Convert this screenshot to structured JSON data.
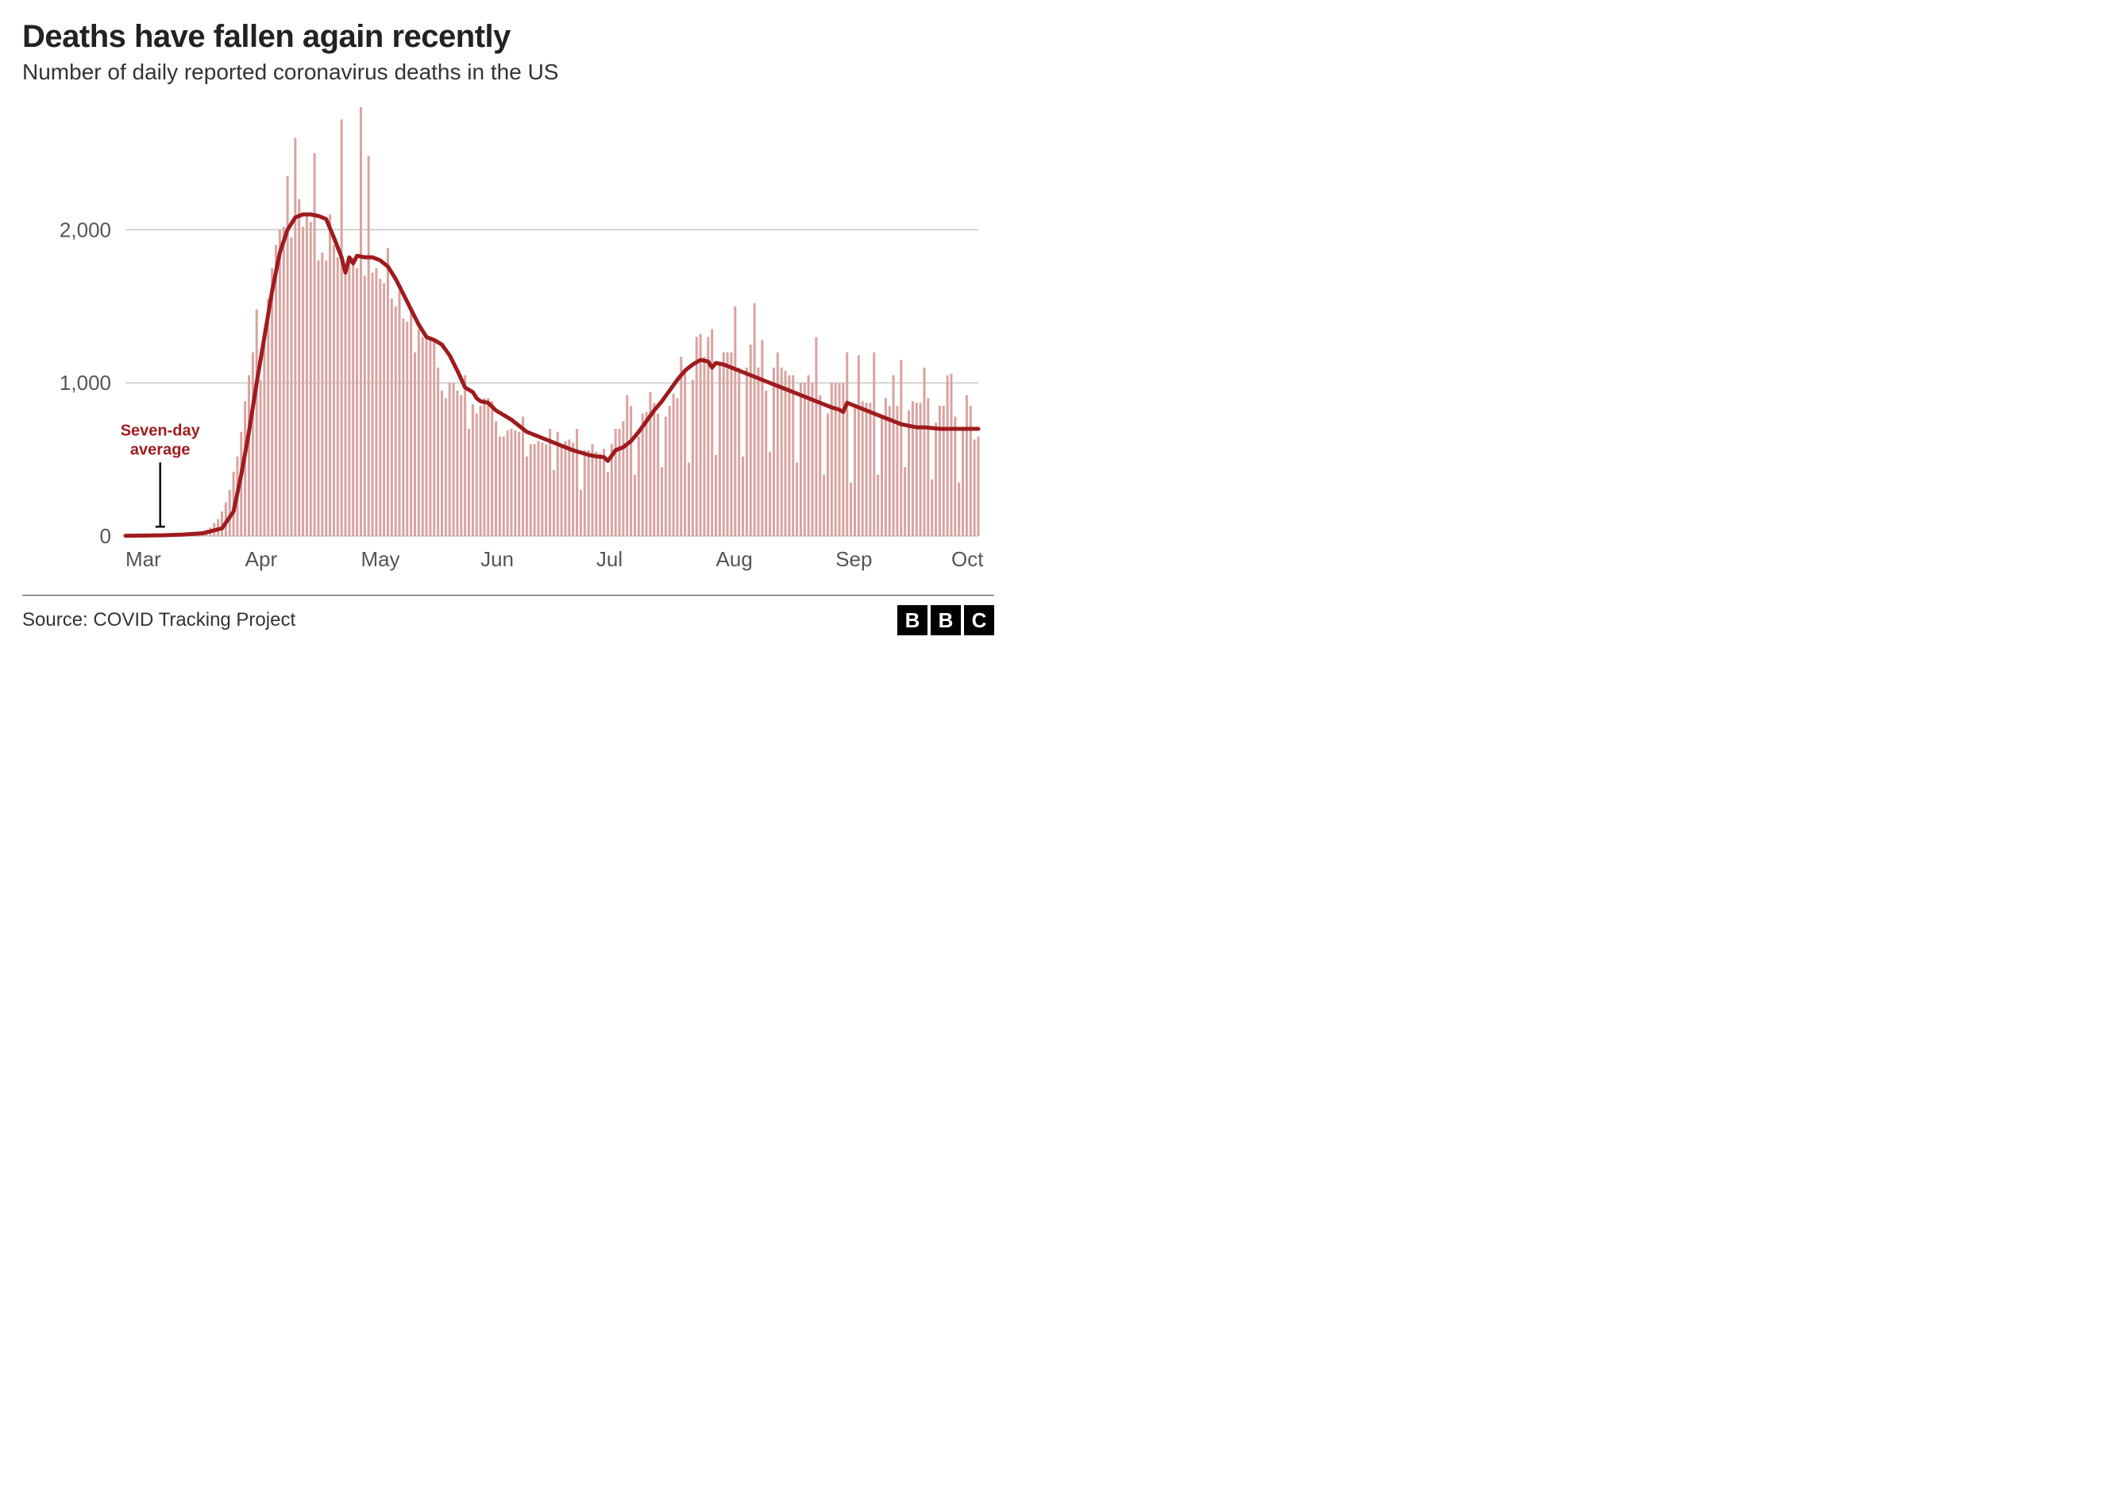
{
  "title": "Deaths have fallen again recently",
  "subtitle": "Number of daily reported coronavirus deaths in the US",
  "source_label": "Source: COVID Tracking Project",
  "logo_letters": [
    "B",
    "B",
    "C"
  ],
  "chart": {
    "type": "bar+line",
    "ylim": [
      0,
      2800
    ],
    "yticks": [
      0,
      1000,
      2000
    ],
    "ytick_labels": [
      "0",
      "1,000",
      "2,000"
    ],
    "xtick_indices": [
      0,
      31,
      61,
      92,
      122,
      153,
      184,
      214
    ],
    "xtick_labels": [
      "Mar",
      "Apr",
      "May",
      "Jun",
      "Jul",
      "Aug",
      "Sep",
      "Oct"
    ],
    "bar_color": "#d9a3a0",
    "line_color": "#9e1b1e",
    "line_width": 5,
    "grid_color": "#bdbdbd",
    "axis_text_color": "#555555",
    "axis_text_fontsize": 26,
    "background_color": "#ffffff",
    "annotation": {
      "text_lines": [
        "Seven-day",
        "average"
      ],
      "text_color": "#9e1b1e",
      "fontsize": 20,
      "fontweight": "700",
      "x_index": 9,
      "y_value": 480,
      "pointer_to_y": 30
    },
    "bars": [
      0,
      0,
      0,
      1,
      2,
      3,
      4,
      2,
      3,
      4,
      5,
      6,
      8,
      7,
      10,
      12,
      15,
      12,
      18,
      22,
      30,
      40,
      55,
      85,
      110,
      160,
      220,
      300,
      420,
      520,
      680,
      880,
      1050,
      1200,
      1480,
      1020,
      1300,
      1550,
      1750,
      1900,
      2000,
      2020,
      2350,
      1950,
      2600,
      2200,
      2020,
      2100,
      2050,
      2500,
      1800,
      1850,
      1800,
      2100,
      1900,
      1820,
      2720,
      1750,
      1800,
      1820,
      1750,
      2800,
      1700,
      2480,
      1720,
      1750,
      1680,
      1650,
      1880,
      1550,
      1500,
      1600,
      1420,
      1400,
      1500,
      1200,
      1350,
      1300,
      1310,
      1300,
      1280,
      1100,
      950,
      900,
      1000,
      1000,
      950,
      920,
      1050,
      700,
      860,
      800,
      850,
      900,
      900,
      880,
      750,
      650,
      650,
      690,
      700,
      690,
      680,
      780,
      520,
      600,
      600,
      620,
      610,
      600,
      700,
      430,
      680,
      600,
      620,
      630,
      610,
      700,
      300,
      560,
      560,
      600,
      550,
      540,
      570,
      420,
      600,
      700,
      700,
      750,
      920,
      850,
      400,
      650,
      800,
      810,
      940,
      870,
      800,
      450,
      780,
      850,
      930,
      900,
      1170,
      1080,
      480,
      1020,
      1300,
      1320,
      1170,
      1300,
      1350,
      530,
      1130,
      1200,
      1200,
      1200,
      1500,
      1100,
      520,
      1100,
      1250,
      1520,
      1100,
      1280,
      950,
      550,
      1100,
      1200,
      1100,
      1080,
      1050,
      1050,
      480,
      1000,
      1000,
      1050,
      1000,
      1300,
      920,
      400,
      800,
      1000,
      1000,
      1000,
      1000,
      1200,
      350,
      850,
      1180,
      880,
      870,
      870,
      1200,
      400,
      780,
      900,
      850,
      1050,
      850,
      1150,
      450,
      820,
      880,
      870,
      870,
      1100,
      900,
      370,
      740,
      850,
      850,
      1050,
      1060,
      780,
      350,
      700,
      920,
      850,
      630,
      650
    ],
    "avg_line": [
      [
        0,
        2
      ],
      [
        5,
        3
      ],
      [
        10,
        5
      ],
      [
        15,
        10
      ],
      [
        20,
        18
      ],
      [
        25,
        50
      ],
      [
        28,
        160
      ],
      [
        30,
        400
      ],
      [
        32,
        680
      ],
      [
        34,
        1000
      ],
      [
        36,
        1300
      ],
      [
        38,
        1600
      ],
      [
        40,
        1850
      ],
      [
        42,
        2000
      ],
      [
        44,
        2080
      ],
      [
        46,
        2100
      ],
      [
        48,
        2100
      ],
      [
        50,
        2090
      ],
      [
        52,
        2070
      ],
      [
        54,
        1950
      ],
      [
        56,
        1820
      ],
      [
        57,
        1720
      ],
      [
        58,
        1820
      ],
      [
        59,
        1780
      ],
      [
        60,
        1830
      ],
      [
        62,
        1820
      ],
      [
        64,
        1820
      ],
      [
        66,
        1800
      ],
      [
        68,
        1760
      ],
      [
        70,
        1680
      ],
      [
        72,
        1580
      ],
      [
        74,
        1480
      ],
      [
        76,
        1380
      ],
      [
        78,
        1300
      ],
      [
        80,
        1280
      ],
      [
        82,
        1250
      ],
      [
        84,
        1180
      ],
      [
        86,
        1080
      ],
      [
        88,
        970
      ],
      [
        90,
        940
      ],
      [
        91,
        900
      ],
      [
        92,
        880
      ],
      [
        94,
        870
      ],
      [
        96,
        820
      ],
      [
        98,
        790
      ],
      [
        100,
        760
      ],
      [
        102,
        720
      ],
      [
        104,
        680
      ],
      [
        106,
        660
      ],
      [
        108,
        640
      ],
      [
        110,
        620
      ],
      [
        112,
        600
      ],
      [
        114,
        580
      ],
      [
        116,
        560
      ],
      [
        118,
        545
      ],
      [
        120,
        530
      ],
      [
        122,
        520
      ],
      [
        124,
        515
      ],
      [
        125,
        490
      ],
      [
        127,
        560
      ],
      [
        129,
        580
      ],
      [
        131,
        620
      ],
      [
        133,
        680
      ],
      [
        135,
        750
      ],
      [
        137,
        820
      ],
      [
        139,
        880
      ],
      [
        141,
        950
      ],
      [
        143,
        1020
      ],
      [
        145,
        1080
      ],
      [
        147,
        1120
      ],
      [
        149,
        1150
      ],
      [
        151,
        1140
      ],
      [
        152,
        1100
      ],
      [
        153,
        1130
      ],
      [
        155,
        1120
      ],
      [
        157,
        1100
      ],
      [
        159,
        1080
      ],
      [
        161,
        1060
      ],
      [
        163,
        1040
      ],
      [
        165,
        1020
      ],
      [
        167,
        1000
      ],
      [
        169,
        980
      ],
      [
        171,
        960
      ],
      [
        173,
        940
      ],
      [
        175,
        920
      ],
      [
        177,
        900
      ],
      [
        179,
        880
      ],
      [
        181,
        860
      ],
      [
        183,
        840
      ],
      [
        185,
        825
      ],
      [
        186,
        810
      ],
      [
        187,
        870
      ],
      [
        189,
        850
      ],
      [
        191,
        830
      ],
      [
        193,
        810
      ],
      [
        195,
        790
      ],
      [
        197,
        770
      ],
      [
        199,
        750
      ],
      [
        201,
        730
      ],
      [
        203,
        720
      ],
      [
        205,
        710
      ],
      [
        207,
        710
      ],
      [
        209,
        705
      ],
      [
        211,
        700
      ],
      [
        213,
        700
      ],
      [
        215,
        700
      ],
      [
        217,
        700
      ],
      [
        219,
        700
      ],
      [
        221,
        700
      ]
    ]
  }
}
